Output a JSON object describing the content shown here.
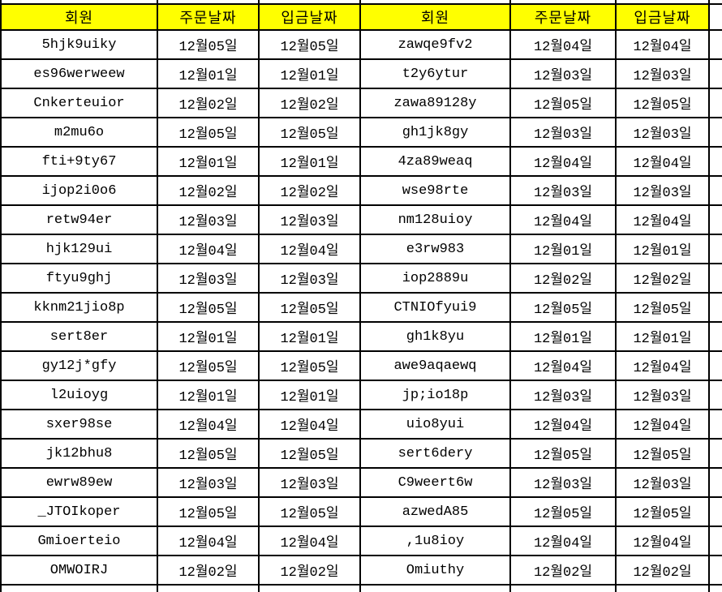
{
  "colors": {
    "header_bg": "#FFFF00",
    "border": "#000000",
    "cell_bg": "#FFFFFF"
  },
  "header": {
    "member": "회원",
    "order_date": "주문날짜",
    "deposit_date": "입금날짜"
  },
  "left_rows": [
    {
      "member": "5hjk9uiky",
      "order_date": "12월05일",
      "deposit_date": "12월05일"
    },
    {
      "member": "es96werweew",
      "order_date": "12월01일",
      "deposit_date": "12월01일"
    },
    {
      "member": "Cnkerteuior",
      "order_date": "12월02일",
      "deposit_date": "12월02일"
    },
    {
      "member": "m2mu6o",
      "order_date": "12월05일",
      "deposit_date": "12월05일"
    },
    {
      "member": "fti+9ty67",
      "order_date": "12월01일",
      "deposit_date": "12월01일"
    },
    {
      "member": "ijop2i0o6",
      "order_date": "12월02일",
      "deposit_date": "12월02일"
    },
    {
      "member": "retw94er",
      "order_date": "12월03일",
      "deposit_date": "12월03일"
    },
    {
      "member": "hjk129ui",
      "order_date": "12월04일",
      "deposit_date": "12월04일"
    },
    {
      "member": "ftyu9ghj",
      "order_date": "12월03일",
      "deposit_date": "12월03일"
    },
    {
      "member": "kknm21jio8p",
      "order_date": "12월05일",
      "deposit_date": "12월05일"
    },
    {
      "member": "sert8er",
      "order_date": "12월01일",
      "deposit_date": "12월01일"
    },
    {
      "member": "gy12j*gfy",
      "order_date": "12월05일",
      "deposit_date": "12월05일"
    },
    {
      "member": "l2uioyg",
      "order_date": "12월01일",
      "deposit_date": "12월01일"
    },
    {
      "member": "sxer98se",
      "order_date": "12월04일",
      "deposit_date": "12월04일"
    },
    {
      "member": "jk12bhu8",
      "order_date": "12월05일",
      "deposit_date": "12월05일"
    },
    {
      "member": "ewrw89ew",
      "order_date": "12월03일",
      "deposit_date": "12월03일"
    },
    {
      "member": "_JTOIkoper",
      "order_date": "12월05일",
      "deposit_date": "12월05일"
    },
    {
      "member": "Gmioerteio",
      "order_date": "12월04일",
      "deposit_date": "12월04일"
    },
    {
      "member": "OMWOIRJ",
      "order_date": "12월02일",
      "deposit_date": "12월02일"
    }
  ],
  "right_rows": [
    {
      "member": "zawqe9fv2",
      "order_date": "12월04일",
      "deposit_date": "12월04일"
    },
    {
      "member": "t2y6ytur",
      "order_date": "12월03일",
      "deposit_date": "12월03일"
    },
    {
      "member": "zawa89128y",
      "order_date": "12월05일",
      "deposit_date": "12월05일"
    },
    {
      "member": "gh1jk8gy",
      "order_date": "12월03일",
      "deposit_date": "12월03일"
    },
    {
      "member": "4za89weaq",
      "order_date": "12월04일",
      "deposit_date": "12월04일"
    },
    {
      "member": "wse98rte",
      "order_date": "12월03일",
      "deposit_date": "12월03일"
    },
    {
      "member": "nm128uioy",
      "order_date": "12월04일",
      "deposit_date": "12월04일"
    },
    {
      "member": "e3rw983",
      "order_date": "12월01일",
      "deposit_date": "12월01일"
    },
    {
      "member": "iop2889u",
      "order_date": "12월02일",
      "deposit_date": "12월02일"
    },
    {
      "member": "CTNIOfyui9",
      "order_date": "12월05일",
      "deposit_date": "12월05일"
    },
    {
      "member": "gh1k8yu",
      "order_date": "12월01일",
      "deposit_date": "12월01일"
    },
    {
      "member": "awe9aqaewq",
      "order_date": "12월04일",
      "deposit_date": "12월04일"
    },
    {
      "member": "jp;io18p",
      "order_date": "12월03일",
      "deposit_date": "12월03일"
    },
    {
      "member": "uio8yui",
      "order_date": "12월04일",
      "deposit_date": "12월04일"
    },
    {
      "member": "sert6dery",
      "order_date": "12월05일",
      "deposit_date": "12월05일"
    },
    {
      "member": "C9weert6w",
      "order_date": "12월03일",
      "deposit_date": "12월03일"
    },
    {
      "member": "azwedA85",
      "order_date": "12월05일",
      "deposit_date": "12월05일"
    },
    {
      "member": ",1u8ioy",
      "order_date": "12월04일",
      "deposit_date": "12월04일"
    },
    {
      "member": "Omiuthy",
      "order_date": "12월02일",
      "deposit_date": "12월02일"
    }
  ]
}
